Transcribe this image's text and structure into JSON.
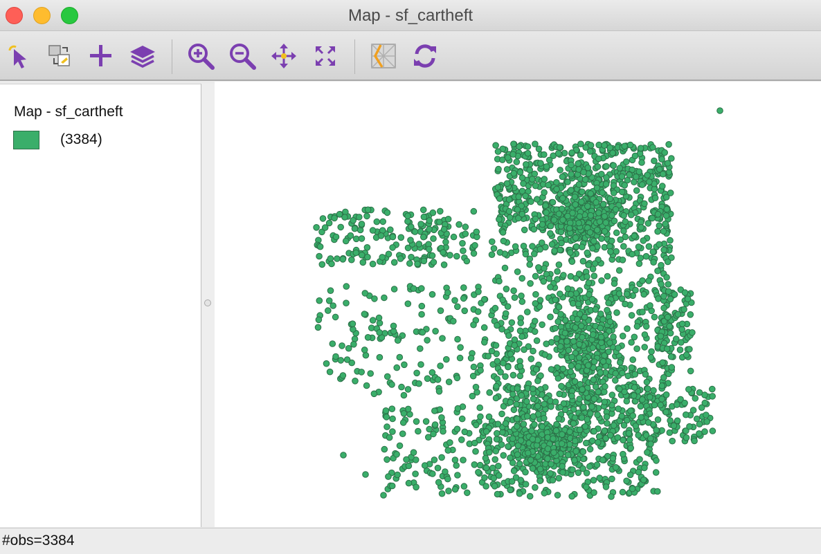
{
  "window": {
    "title": "Map - sf_cartheft"
  },
  "toolbar": {
    "buttons": [
      {
        "icon": "select-pointer-icon"
      },
      {
        "icon": "selection-shape-icon"
      },
      {
        "icon": "add-layer-icon"
      },
      {
        "icon": "layers-icon"
      },
      {
        "icon": "zoom-in-icon"
      },
      {
        "icon": "zoom-out-icon"
      },
      {
        "icon": "pan-icon"
      },
      {
        "icon": "fit-extent-icon"
      },
      {
        "icon": "basemap-icon"
      },
      {
        "icon": "refresh-icon"
      }
    ],
    "icon_color": "#7b3fb0",
    "accent_color": "#f0c020"
  },
  "legend": {
    "title": "Map - sf_cartheft",
    "categories": [
      {
        "label": "(3384)",
        "color": "#3aae6a"
      }
    ]
  },
  "map": {
    "point_color": "#3aae6a",
    "point_outline": "#2c7048",
    "observations": 3384
  },
  "status": {
    "text": "#obs=3384"
  }
}
